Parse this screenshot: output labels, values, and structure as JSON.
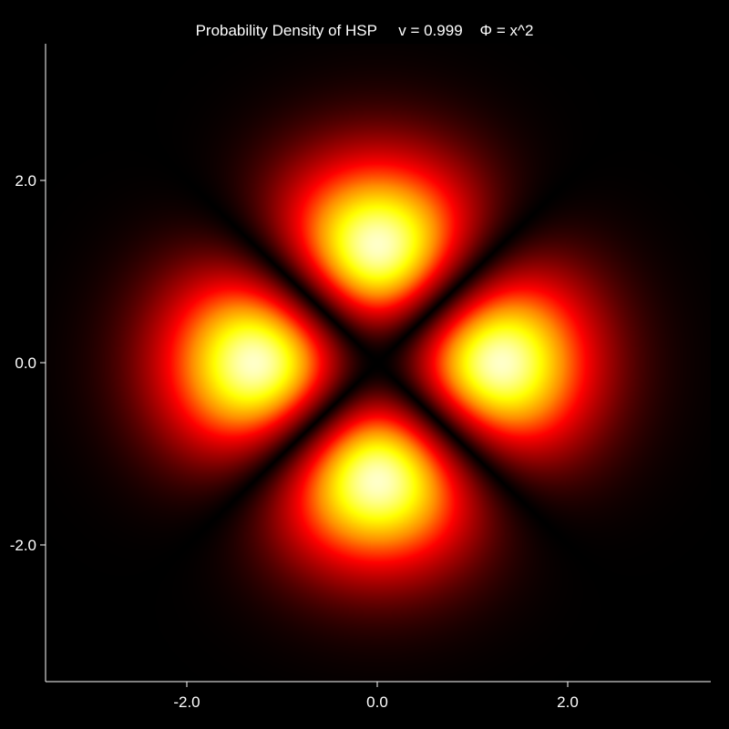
{
  "chart_data": {
    "type": "heatmap",
    "title": "Probability Density of HSP     v = 0.999    Φ = x^2",
    "xlabel": "",
    "ylabel": "",
    "xlim": [
      -3.5,
      3.5
    ],
    "ylim": [
      -3.5,
      3.5
    ],
    "x_ticks": [
      {
        "value": -2.0,
        "label": "-2.0"
      },
      {
        "value": 0.0,
        "label": "0.0"
      },
      {
        "value": 2.0,
        "label": "2.0"
      }
    ],
    "y_ticks": [
      {
        "value": 2.0,
        "label": "2.0"
      },
      {
        "value": 0.0,
        "label": "0.0"
      },
      {
        "value": -2.0,
        "label": "-2.0"
      }
    ],
    "colormap": [
      "#000000",
      "#8b0000",
      "#ff0000",
      "#ff8c00",
      "#ffff00",
      "#ffffc8"
    ],
    "lobes": [
      {
        "x": 0.0,
        "y": 1.3,
        "peak": 1.0
      },
      {
        "x": 0.0,
        "y": -1.3,
        "peak": 1.0
      },
      {
        "x": -1.3,
        "y": 0.0,
        "peak": 1.0
      },
      {
        "x": 1.3,
        "y": 0.0,
        "peak": 1.0
      }
    ],
    "grid": false,
    "legend": "none",
    "axis_color": "#ffffff",
    "background": "#000000"
  }
}
